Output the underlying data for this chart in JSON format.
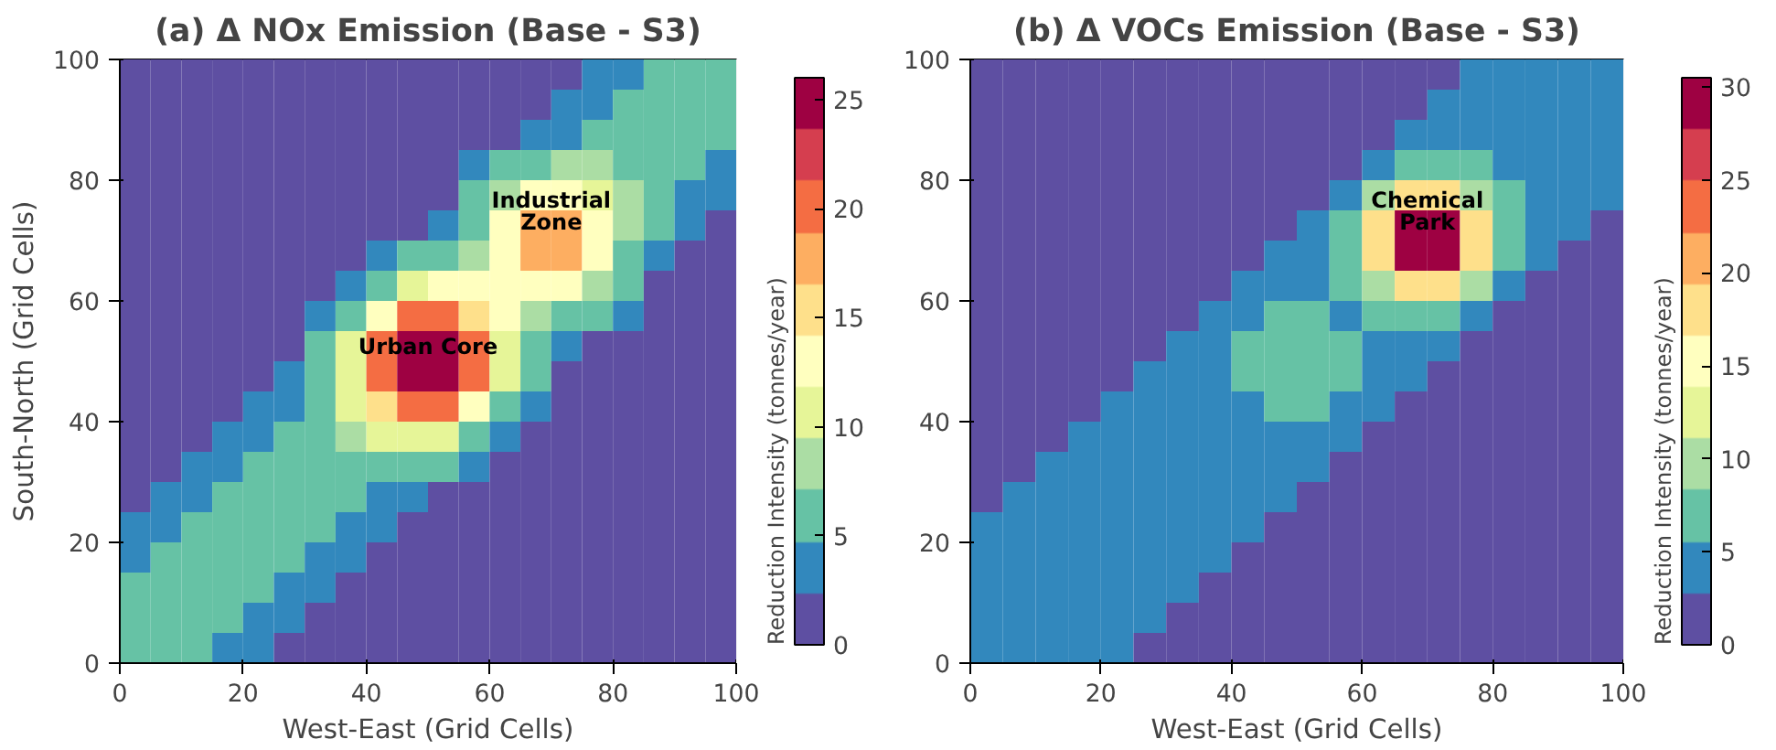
{
  "chart_data": [
    {
      "type": "heatmap",
      "title": "(a) Δ NOx Emission (Base - S3)",
      "xlabel": "West-East (Grid Cells)",
      "ylabel": "South-North (Grid Cells)",
      "clabel": "Reduction Intensity (tonnes/year)",
      "xlim": [
        0,
        100
      ],
      "ylim": [
        0,
        100
      ],
      "xticks": [
        0,
        20,
        40,
        60,
        80,
        100
      ],
      "yticks": [
        0,
        20,
        40,
        60,
        80,
        100
      ],
      "clim": [
        0,
        26
      ],
      "cticks": [
        0,
        5,
        10,
        15,
        20,
        25
      ],
      "colors": [
        "#5e4fa2",
        "#3288bd",
        "#66c2a5",
        "#abdda4",
        "#e6f598",
        "#ffffbf",
        "#fee08b",
        "#fdae61",
        "#f46d43",
        "#d53e4f",
        "#9e0142"
      ],
      "annotations": [
        "Urban Core",
        "Industrial\nZone"
      ],
      "cells": [
        [
          0,
          0,
          0,
          0,
          0,
          0,
          0,
          0,
          0,
          0,
          0,
          0,
          1,
          1,
          2,
          3,
          4,
          5,
          6,
          6
        ],
        [
          0,
          0,
          0,
          0,
          0,
          0,
          0,
          0,
          0,
          0,
          0,
          1,
          1,
          2,
          3,
          4,
          5,
          6,
          6,
          6
        ],
        [
          0,
          0,
          0,
          0,
          0,
          0,
          0,
          0,
          0,
          0,
          1,
          1,
          2,
          3,
          4,
          5,
          6,
          6,
          6,
          5
        ],
        [
          0,
          0,
          0,
          0,
          0,
          0,
          0,
          0,
          0,
          1,
          1,
          3,
          5,
          7,
          8,
          8,
          7,
          6,
          5,
          4
        ],
        [
          0,
          0,
          0,
          0,
          0,
          0,
          0,
          0,
          1,
          1,
          2,
          5,
          8,
          12,
          13,
          10,
          8,
          5,
          4,
          3
        ],
        [
          0,
          0,
          0,
          0,
          0,
          0,
          0,
          1,
          1,
          2,
          4,
          7,
          12,
          17,
          17,
          13,
          8,
          5,
          3,
          2
        ],
        [
          0,
          0,
          0,
          0,
          0,
          0,
          1,
          2,
          3,
          5,
          6,
          9,
          14,
          17,
          17,
          12,
          7,
          4,
          2,
          1
        ],
        [
          0,
          0,
          0,
          0,
          0,
          1,
          2,
          4,
          7,
          10,
          12,
          12,
          12,
          14,
          12,
          8,
          5,
          2,
          1,
          1
        ],
        [
          0,
          0,
          0,
          0,
          1,
          1,
          3,
          7,
          13,
          19,
          20,
          16,
          12,
          9,
          7,
          5,
          3,
          1,
          1,
          0
        ],
        [
          0,
          0,
          0,
          1,
          1,
          2,
          5,
          10,
          19,
          26,
          26,
          20,
          11,
          6,
          4,
          2,
          1,
          1,
          0,
          0
        ],
        [
          0,
          0,
          1,
          1,
          2,
          3,
          6,
          11,
          20,
          26,
          26,
          19,
          10,
          5,
          2,
          1,
          1,
          0,
          0,
          0
        ],
        [
          0,
          1,
          1,
          2,
          3,
          4,
          6,
          10,
          15,
          20,
          19,
          13,
          7,
          3,
          1,
          1,
          0,
          0,
          0,
          0
        ],
        [
          1,
          1,
          2,
          3,
          4,
          5,
          7,
          8,
          10,
          11,
          10,
          7,
          4,
          2,
          1,
          0,
          0,
          0,
          0,
          0
        ],
        [
          1,
          2,
          3,
          4,
          5,
          6,
          6,
          7,
          6,
          6,
          5,
          3,
          2,
          1,
          0,
          0,
          0,
          0,
          0,
          0
        ],
        [
          2,
          3,
          4,
          5,
          6,
          6,
          6,
          5,
          4,
          3,
          2,
          1,
          1,
          0,
          0,
          0,
          0,
          0,
          0,
          0
        ],
        [
          3,
          4,
          5,
          6,
          6,
          6,
          5,
          4,
          3,
          2,
          1,
          1,
          0,
          0,
          0,
          0,
          0,
          0,
          0,
          0
        ],
        [
          4,
          5,
          6,
          6,
          6,
          5,
          4,
          3,
          2,
          1,
          1,
          0,
          0,
          0,
          0,
          0,
          0,
          0,
          0,
          0
        ],
        [
          5,
          6,
          6,
          6,
          5,
          4,
          3,
          2,
          1,
          1,
          0,
          0,
          0,
          0,
          0,
          0,
          0,
          0,
          0,
          0
        ],
        [
          6,
          6,
          6,
          5,
          4,
          3,
          2,
          1,
          1,
          0,
          0,
          0,
          0,
          0,
          0,
          0,
          0,
          0,
          0,
          0
        ],
        [
          6,
          6,
          5,
          4,
          3,
          2,
          1,
          1,
          0,
          0,
          0,
          0,
          0,
          0,
          0,
          0,
          0,
          0,
          0,
          0
        ]
      ]
    },
    {
      "type": "heatmap",
      "title": "(b) Δ VOCs Emission (Base - S3)",
      "xlabel": "West-East (Grid Cells)",
      "clabel": "Reduction Intensity (tonnes/year)",
      "xlim": [
        0,
        100
      ],
      "ylim": [
        0,
        100
      ],
      "xticks": [
        0,
        20,
        40,
        60,
        80,
        100
      ],
      "yticks": [
        0,
        20,
        40,
        60,
        80,
        100
      ],
      "clim": [
        0,
        30.5
      ],
      "cticks": [
        0,
        5,
        10,
        15,
        20,
        25,
        30
      ],
      "colors": [
        "#5e4fa2",
        "#3288bd",
        "#66c2a5",
        "#abdda4",
        "#e6f598",
        "#ffffbf",
        "#fee08b",
        "#fdae61",
        "#f46d43",
        "#d53e4f",
        "#9e0142"
      ],
      "annotations": [
        "Chemical\nPark"
      ],
      "cells": [
        [
          2,
          2,
          2,
          2,
          2,
          2,
          2,
          2,
          2,
          2,
          2,
          2,
          2,
          2,
          2,
          3,
          3,
          4,
          4,
          4
        ],
        [
          2,
          2,
          2,
          2,
          2,
          2,
          2,
          2,
          2,
          2,
          2,
          2,
          2,
          2,
          3,
          3,
          4,
          4,
          4,
          4
        ],
        [
          2,
          2,
          2,
          2,
          2,
          2,
          2,
          2,
          2,
          2,
          2,
          2,
          2,
          3,
          3,
          4,
          4,
          4,
          4,
          4
        ],
        [
          2,
          2,
          2,
          2,
          2,
          2,
          2,
          2,
          2,
          2,
          2,
          2,
          5,
          6,
          7,
          6,
          4,
          4,
          4,
          3
        ],
        [
          2,
          2,
          2,
          2,
          2,
          2,
          2,
          2,
          2,
          2,
          2,
          5,
          10,
          17,
          17,
          11,
          6,
          4,
          3,
          3
        ],
        [
          2,
          2,
          2,
          2,
          2,
          2,
          2,
          2,
          2,
          2,
          3,
          6,
          17,
          30,
          30,
          17,
          7,
          3,
          3,
          2
        ],
        [
          2,
          2,
          2,
          2,
          2,
          2,
          2,
          2,
          2,
          3,
          3,
          7,
          17,
          30,
          30,
          17,
          6,
          3,
          2,
          2
        ],
        [
          2,
          2,
          2,
          2,
          2,
          2,
          2,
          2,
          3,
          3,
          4,
          6,
          11,
          17,
          17,
          10,
          5,
          2,
          2,
          2
        ],
        [
          2,
          2,
          2,
          2,
          2,
          2,
          2,
          3,
          4,
          6,
          6,
          5,
          6,
          7,
          6,
          5,
          2,
          2,
          2,
          2
        ],
        [
          2,
          2,
          2,
          2,
          2,
          2,
          3,
          3,
          6,
          7,
          7,
          6,
          4,
          3,
          3,
          2,
          2,
          2,
          2,
          2
        ],
        [
          2,
          2,
          2,
          2,
          2,
          3,
          3,
          4,
          6,
          7,
          7,
          6,
          3,
          3,
          2,
          2,
          2,
          2,
          2,
          2
        ],
        [
          2,
          2,
          2,
          2,
          3,
          3,
          4,
          4,
          5,
          6,
          6,
          4,
          3,
          2,
          2,
          2,
          2,
          2,
          2,
          2
        ],
        [
          2,
          2,
          2,
          3,
          3,
          4,
          4,
          4,
          4,
          4,
          3,
          3,
          2,
          2,
          2,
          2,
          2,
          2,
          2,
          2
        ],
        [
          2,
          2,
          3,
          3,
          4,
          4,
          4,
          4,
          4,
          3,
          3,
          2,
          2,
          2,
          2,
          2,
          2,
          2,
          2,
          2
        ],
        [
          2,
          3,
          3,
          4,
          4,
          4,
          4,
          4,
          3,
          3,
          2,
          2,
          2,
          2,
          2,
          2,
          2,
          2,
          2,
          2
        ],
        [
          3,
          3,
          4,
          4,
          4,
          4,
          4,
          3,
          3,
          2,
          2,
          2,
          2,
          2,
          2,
          2,
          2,
          2,
          2,
          2
        ],
        [
          3,
          4,
          4,
          4,
          4,
          4,
          3,
          3,
          2,
          2,
          2,
          2,
          2,
          2,
          2,
          2,
          2,
          2,
          2,
          2
        ],
        [
          4,
          4,
          4,
          4,
          4,
          3,
          3,
          2,
          2,
          2,
          2,
          2,
          2,
          2,
          2,
          2,
          2,
          2,
          2,
          2
        ],
        [
          4,
          4,
          4,
          4,
          3,
          3,
          2,
          2,
          2,
          2,
          2,
          2,
          2,
          2,
          2,
          2,
          2,
          2,
          2,
          2
        ],
        [
          4,
          4,
          4,
          3,
          3,
          2,
          2,
          2,
          2,
          2,
          2,
          2,
          2,
          2,
          2,
          2,
          2,
          2,
          2,
          2
        ]
      ]
    }
  ]
}
